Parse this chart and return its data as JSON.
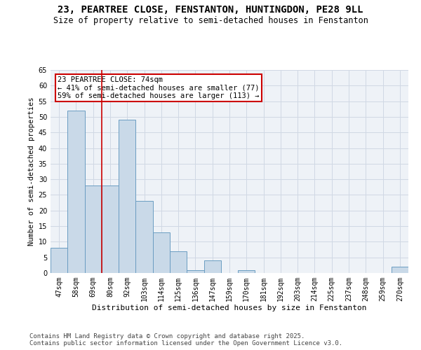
{
  "title1": "23, PEARTREE CLOSE, FENSTANTON, HUNTINGDON, PE28 9LL",
  "title2": "Size of property relative to semi-detached houses in Fenstanton",
  "xlabel": "Distribution of semi-detached houses by size in Fenstanton",
  "ylabel": "Number of semi-detached properties",
  "categories": [
    "47sqm",
    "58sqm",
    "69sqm",
    "80sqm",
    "92sqm",
    "103sqm",
    "114sqm",
    "125sqm",
    "136sqm",
    "147sqm",
    "159sqm",
    "170sqm",
    "181sqm",
    "192sqm",
    "203sqm",
    "214sqm",
    "225sqm",
    "237sqm",
    "248sqm",
    "259sqm",
    "270sqm"
  ],
  "values": [
    8,
    52,
    28,
    28,
    49,
    23,
    13,
    7,
    1,
    4,
    0,
    1,
    0,
    0,
    0,
    0,
    0,
    0,
    0,
    0,
    2
  ],
  "bar_color": "#c9d9e8",
  "bar_edge_color": "#6b9dc2",
  "annotation_text": "23 PEARTREE CLOSE: 74sqm\n← 41% of semi-detached houses are smaller (77)\n59% of semi-detached houses are larger (113) →",
  "annotation_box_color": "#ffffff",
  "annotation_box_edge": "#cc0000",
  "vline_color": "#cc0000",
  "vline_x": 2.5,
  "ylim": [
    0,
    65
  ],
  "yticks": [
    0,
    5,
    10,
    15,
    20,
    25,
    30,
    35,
    40,
    45,
    50,
    55,
    60,
    65
  ],
  "grid_color": "#d0d8e4",
  "background_color": "#eef2f7",
  "footer1": "Contains HM Land Registry data © Crown copyright and database right 2025.",
  "footer2": "Contains public sector information licensed under the Open Government Licence v3.0.",
  "title1_fontsize": 10,
  "title2_fontsize": 8.5,
  "xlabel_fontsize": 8,
  "ylabel_fontsize": 7.5,
  "tick_fontsize": 7,
  "annotation_fontsize": 7.5,
  "footer_fontsize": 6.5
}
